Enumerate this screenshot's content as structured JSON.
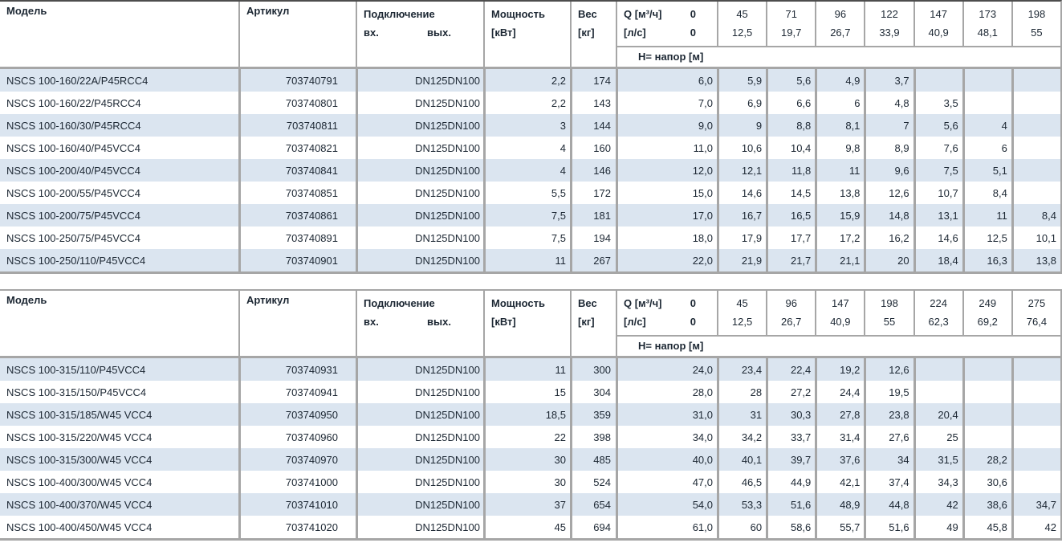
{
  "styles": {
    "stripe_color": "#dbe5f0",
    "grid_color": "#a6a6a6",
    "text_color": "#1c2733"
  },
  "tables": [
    {
      "name": "nscs-100-series-table-1",
      "header": {
        "model": "Модель",
        "article": "Артикул",
        "connection": "Подключение",
        "conn_in": "вх.",
        "conn_out": "вых.",
        "power1": "Мощность",
        "power2": "[кВт]",
        "weight1": "Вес",
        "weight2": "[кг]",
        "q1": "Q [м³/ч]",
        "q2": "[л/с]",
        "q_zero1": "0",
        "q_zero2": "0",
        "head_label": "Н= напор [м]",
        "q_cols": [
          {
            "m3h": "45",
            "ls": "12,5"
          },
          {
            "m3h": "71",
            "ls": "19,7"
          },
          {
            "m3h": "96",
            "ls": "26,7"
          },
          {
            "m3h": "122",
            "ls": "33,9"
          },
          {
            "m3h": "147",
            "ls": "40,9"
          },
          {
            "m3h": "173",
            "ls": "48,1"
          },
          {
            "m3h": "198",
            "ls": "55"
          }
        ]
      },
      "rows": [
        {
          "model": "NSCS 100-160/22A/P45RCC4",
          "article": "703740791",
          "dn_in": "DN125",
          "dn_out": "DN100",
          "power": "2,2",
          "weight": "174",
          "h": [
            "6,0",
            "5,9",
            "5,6",
            "4,9",
            "3,7",
            "",
            "",
            ""
          ]
        },
        {
          "model": "NSCS 100-160/22/P45RCC4",
          "article": "703740801",
          "dn_in": "DN125",
          "dn_out": "DN100",
          "power": "2,2",
          "weight": "143",
          "h": [
            "7,0",
            "6,9",
            "6,6",
            "6",
            "4,8",
            "3,5",
            "",
            ""
          ]
        },
        {
          "model": "NSCS 100-160/30/P45RCC4",
          "article": "703740811",
          "dn_in": "DN125",
          "dn_out": "DN100",
          "power": "3",
          "weight": "144",
          "h": [
            "9,0",
            "9",
            "8,8",
            "8,1",
            "7",
            "5,6",
            "4",
            ""
          ]
        },
        {
          "model": "NSCS 100-160/40/P45VCC4",
          "article": "703740821",
          "dn_in": "DN125",
          "dn_out": "DN100",
          "power": "4",
          "weight": "160",
          "h": [
            "11,0",
            "10,6",
            "10,4",
            "9,8",
            "8,9",
            "7,6",
            "6",
            ""
          ]
        },
        {
          "model": "NSCS 100-200/40/P45VCC4",
          "article": "703740841",
          "dn_in": "DN125",
          "dn_out": "DN100",
          "power": "4",
          "weight": "146",
          "h": [
            "12,0",
            "12,1",
            "11,8",
            "11",
            "9,6",
            "7,5",
            "5,1",
            ""
          ]
        },
        {
          "model": "NSCS 100-200/55/P45VCC4",
          "article": "703740851",
          "dn_in": "DN125",
          "dn_out": "DN100",
          "power": "5,5",
          "weight": "172",
          "h": [
            "15,0",
            "14,6",
            "14,5",
            "13,8",
            "12,6",
            "10,7",
            "8,4",
            ""
          ]
        },
        {
          "model": "NSCS 100-200/75/P45VCC4",
          "article": "703740861",
          "dn_in": "DN125",
          "dn_out": "DN100",
          "power": "7,5",
          "weight": "181",
          "h": [
            "17,0",
            "16,7",
            "16,5",
            "15,9",
            "14,8",
            "13,1",
            "11",
            "8,4"
          ]
        },
        {
          "model": "NSCS 100-250/75/P45VCC4",
          "article": "703740891",
          "dn_in": "DN125",
          "dn_out": "DN100",
          "power": "7,5",
          "weight": "194",
          "h": [
            "18,0",
            "17,9",
            "17,7",
            "17,2",
            "16,2",
            "14,6",
            "12,5",
            "10,1"
          ]
        },
        {
          "model": "NSCS 100-250/110/P45VCC4",
          "article": "703740901",
          "dn_in": "DN125",
          "dn_out": "DN100",
          "power": "11",
          "weight": "267",
          "h": [
            "22,0",
            "21,9",
            "21,7",
            "21,1",
            "20",
            "18,4",
            "16,3",
            "13,8"
          ]
        }
      ]
    },
    {
      "name": "nscs-100-series-table-2",
      "header": {
        "model": "Модель",
        "article": "Артикул",
        "connection": "Подключение",
        "conn_in": "вх.",
        "conn_out": "вых.",
        "power1": "Мощность",
        "power2": "[кВт]",
        "weight1": "Вес",
        "weight2": "[кг]",
        "q1": "Q [м³/ч]",
        "q2": "[л/с]",
        "q_zero1": "0",
        "q_zero2": "0",
        "head_label": "Н= напор [м]",
        "q_cols": [
          {
            "m3h": "45",
            "ls": "12,5"
          },
          {
            "m3h": "96",
            "ls": "26,7"
          },
          {
            "m3h": "147",
            "ls": "40,9"
          },
          {
            "m3h": "198",
            "ls": "55"
          },
          {
            "m3h": "224",
            "ls": "62,3"
          },
          {
            "m3h": "249",
            "ls": "69,2"
          },
          {
            "m3h": "275",
            "ls": "76,4"
          }
        ]
      },
      "rows": [
        {
          "model": "NSCS 100-315/110/P45VCC4",
          "article": "703740931",
          "dn_in": "DN125",
          "dn_out": "DN100",
          "power": "11",
          "weight": "300",
          "h": [
            "24,0",
            "23,4",
            "22,4",
            "19,2",
            "12,6",
            "",
            "",
            ""
          ]
        },
        {
          "model": "NSCS 100-315/150/P45VCC4",
          "article": "703740941",
          "dn_in": "DN125",
          "dn_out": "DN100",
          "power": "15",
          "weight": "304",
          "h": [
            "28,0",
            "28",
            "27,2",
            "24,4",
            "19,5",
            "",
            "",
            ""
          ]
        },
        {
          "model": "NSCS 100-315/185/W45 VCC4",
          "article": "703740950",
          "dn_in": "DN125",
          "dn_out": "DN100",
          "power": "18,5",
          "weight": "359",
          "h": [
            "31,0",
            "31",
            "30,3",
            "27,8",
            "23,8",
            "20,4",
            "",
            ""
          ]
        },
        {
          "model": "NSCS 100-315/220/W45 VCC4",
          "article": "703740960",
          "dn_in": "DN125",
          "dn_out": "DN100",
          "power": "22",
          "weight": "398",
          "h": [
            "34,0",
            "34,2",
            "33,7",
            "31,4",
            "27,6",
            "25",
            "",
            ""
          ]
        },
        {
          "model": "NSCS 100-315/300/W45 VCC4",
          "article": "703740970",
          "dn_in": "DN125",
          "dn_out": "DN100",
          "power": "30",
          "weight": "485",
          "h": [
            "40,0",
            "40,1",
            "39,7",
            "37,6",
            "34",
            "31,5",
            "28,2",
            ""
          ]
        },
        {
          "model": "NSCS 100-400/300/W45 VCC4",
          "article": "703741000",
          "dn_in": "DN125",
          "dn_out": "DN100",
          "power": "30",
          "weight": "524",
          "h": [
            "47,0",
            "46,5",
            "44,9",
            "42,1",
            "37,4",
            "34,3",
            "30,6",
            ""
          ]
        },
        {
          "model": "NSCS 100-400/370/W45 VCC4",
          "article": "703741010",
          "dn_in": "DN125",
          "dn_out": "DN100",
          "power": "37",
          "weight": "654",
          "h": [
            "54,0",
            "53,3",
            "51,6",
            "48,9",
            "44,8",
            "42",
            "38,6",
            "34,7"
          ]
        },
        {
          "model": "NSCS 100-400/450/W45 VCC4",
          "article": "703741020",
          "dn_in": "DN125",
          "dn_out": "DN100",
          "power": "45",
          "weight": "694",
          "h": [
            "61,0",
            "60",
            "58,6",
            "55,7",
            "51,6",
            "49",
            "45,8",
            "42"
          ]
        }
      ]
    }
  ]
}
